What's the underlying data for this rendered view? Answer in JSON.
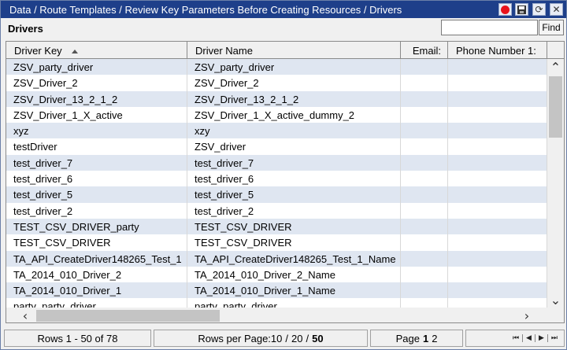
{
  "window": {
    "title": "Data / Route Templates / Review Key Parameters Before Creating Resources / Drivers",
    "buttons": [
      {
        "name": "record",
        "icon": "record-icon",
        "color": "#e8121b"
      },
      {
        "name": "save",
        "icon": "floppy-icon"
      },
      {
        "name": "refresh",
        "icon": "refresh-icon"
      },
      {
        "name": "close",
        "icon": "close-icon"
      }
    ]
  },
  "panel": {
    "title": "Drivers",
    "search": {
      "value": "",
      "placeholder": ""
    },
    "find_label": "Find"
  },
  "table": {
    "columns": [
      {
        "label": "Driver Key",
        "sorted": "ascending"
      },
      {
        "label": "Driver Name"
      },
      {
        "label": "Email:"
      },
      {
        "label": "Phone Number 1:"
      }
    ],
    "rows": [
      {
        "key": "ZSV_party_driver",
        "name": "ZSV_party_driver",
        "email": "",
        "phone": ""
      },
      {
        "key": "ZSV_Driver_2",
        "name": "ZSV_Driver_2",
        "email": "",
        "phone": ""
      },
      {
        "key": "ZSV_Driver_13_2_1_2",
        "name": "ZSV_Driver_13_2_1_2",
        "email": "",
        "phone": ""
      },
      {
        "key": "ZSV_Driver_1_X_active",
        "name": "ZSV_Driver_1_X_active_dummy_2",
        "email": "",
        "phone": ""
      },
      {
        "key": "xyz",
        "name": "xzy",
        "email": "",
        "phone": ""
      },
      {
        "key": "testDriver",
        "name": "ZSV_driver",
        "email": "",
        "phone": ""
      },
      {
        "key": "test_driver_7",
        "name": "test_driver_7",
        "email": "",
        "phone": ""
      },
      {
        "key": "test_driver_6",
        "name": "test_driver_6",
        "email": "",
        "phone": ""
      },
      {
        "key": "test_driver_5",
        "name": "test_driver_5",
        "email": "",
        "phone": ""
      },
      {
        "key": "test_driver_2",
        "name": "test_driver_2",
        "email": "",
        "phone": ""
      },
      {
        "key": "TEST_CSV_DRIVER_party",
        "name": "TEST_CSV_DRIVER",
        "email": "",
        "phone": ""
      },
      {
        "key": "TEST_CSV_DRIVER",
        "name": "TEST_CSV_DRIVER",
        "email": "",
        "phone": ""
      },
      {
        "key": "TA_API_CreateDriver148265_Test_1",
        "name": "TA_API_CreateDriver148265_Test_1_Name",
        "email": "",
        "phone": ""
      },
      {
        "key": "TA_2014_010_Driver_2",
        "name": "TA_2014_010_Driver_2_Name",
        "email": "",
        "phone": ""
      },
      {
        "key": "TA_2014_010_Driver_1",
        "name": "TA_2014_010_Driver_1_Name",
        "email": "",
        "phone": ""
      },
      {
        "key": "party_party_driver",
        "name": "party_party_driver",
        "email": "",
        "phone": ""
      }
    ]
  },
  "status": {
    "rows_label": "Rows 1 - 50 of 78",
    "per_page_label": "Rows per Page:",
    "per_page_options": [
      "10",
      "20",
      "50"
    ],
    "per_page_sep": "/",
    "page_label": "Page",
    "pages": [
      "1",
      "2"
    ],
    "current_page": "1"
  }
}
